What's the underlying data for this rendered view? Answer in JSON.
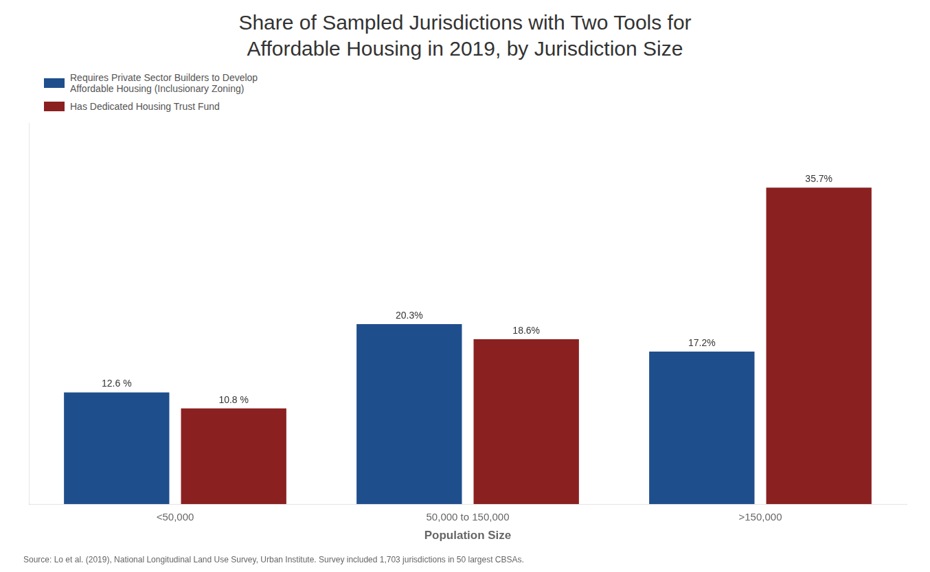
{
  "chart_data": {
    "type": "bar",
    "title": [
      "Share of Sampled Jurisdictions with Two Tools for",
      "Affordable Housing in 2019, by Jurisdiction Size"
    ],
    "categories": [
      "<50,000",
      "50,000 to 150,000",
      ">150,000"
    ],
    "series": [
      {
        "name": "Requires Private Sector Builders to Develop\nAffordable Housing (Inclusionary Zoning)",
        "color": "#1F4E8C",
        "values": [
          12.6,
          20.3,
          17.2
        ],
        "value_labels": [
          "12.6 %",
          "20.3%",
          "17.2%"
        ]
      },
      {
        "name": "Has Dedicated Housing Trust Fund",
        "color": "#8B2020",
        "values": [
          10.8,
          18.6,
          35.7
        ],
        "value_labels": [
          "10.8 %",
          "18.6%",
          "35.7%"
        ]
      }
    ],
    "xlabel": "Population Size",
    "source": "Source: Lo et al. (2019), National Longitudinal Land Use Survey, Urban Institute. Survey included 1,703 jurisdictions in 50 largest CBSAs.",
    "ylim": [
      0,
      43
    ],
    "tick_labels": "x",
    "data_labels": true,
    "grid": false,
    "legend": "upper left"
  }
}
